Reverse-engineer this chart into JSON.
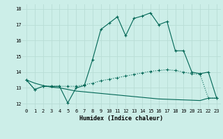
{
  "xlabel": "Humidex (Indice chaleur)",
  "ylabel": "",
  "bg_color": "#cceee8",
  "grid_color": "#b8ddd6",
  "line_color": "#006655",
  "xlim": [
    -0.5,
    23.5
  ],
  "ylim": [
    11.7,
    18.3
  ],
  "xticks": [
    0,
    1,
    2,
    3,
    4,
    5,
    6,
    7,
    8,
    9,
    10,
    11,
    12,
    13,
    14,
    15,
    16,
    17,
    18,
    19,
    20,
    21,
    22,
    23
  ],
  "yticks": [
    12,
    13,
    14,
    15,
    16,
    17,
    18
  ],
  "line1_x": [
    0,
    1,
    2,
    3,
    4,
    5,
    6,
    7,
    8,
    9,
    10,
    11,
    12,
    13,
    14,
    15,
    16,
    17,
    18,
    19,
    20,
    21,
    22,
    23
  ],
  "line1_y": [
    13.5,
    12.9,
    13.1,
    13.1,
    13.1,
    12.05,
    13.0,
    13.15,
    14.8,
    16.7,
    17.1,
    17.5,
    16.3,
    17.4,
    17.55,
    17.75,
    17.0,
    17.2,
    15.35,
    15.35,
    14.0,
    13.9,
    14.0,
    12.35
  ],
  "line2_x": [
    0,
    1,
    2,
    3,
    4,
    5,
    6,
    7,
    8,
    9,
    10,
    11,
    12,
    13,
    14,
    15,
    16,
    17,
    18,
    19,
    20,
    21,
    22,
    23
  ],
  "line2_y": [
    13.5,
    12.9,
    13.1,
    13.1,
    13.1,
    13.1,
    13.1,
    13.2,
    13.3,
    13.45,
    13.55,
    13.65,
    13.75,
    13.85,
    13.95,
    14.05,
    14.1,
    14.15,
    14.1,
    14.0,
    13.9,
    13.85,
    12.35,
    12.35
  ],
  "line3_x": [
    0,
    1,
    2,
    3,
    4,
    5,
    6,
    7,
    8,
    9,
    10,
    11,
    12,
    13,
    14,
    15,
    16,
    17,
    18,
    19,
    20,
    21,
    22,
    23
  ],
  "line3_y": [
    13.5,
    13.3,
    13.15,
    13.05,
    13.0,
    12.9,
    12.8,
    12.75,
    12.7,
    12.65,
    12.6,
    12.55,
    12.5,
    12.45,
    12.4,
    12.35,
    12.3,
    12.28,
    12.26,
    12.24,
    12.22,
    12.2,
    12.35,
    12.35
  ],
  "tick_fontsize": 5,
  "xlabel_fontsize": 6,
  "linewidth": 0.8,
  "markersize": 3
}
